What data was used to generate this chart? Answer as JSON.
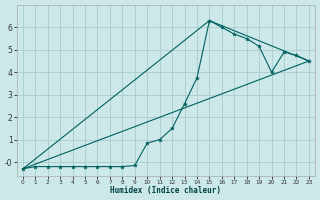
{
  "xlabel": "Humidex (Indice chaleur)",
  "bg_color": "#cce8e8",
  "grid_color": "#aacccc",
  "line_color": "#006060",
  "xlim": [
    -0.5,
    23.5
  ],
  "ylim": [
    -0.6,
    7.0
  ],
  "x_ticks": [
    0,
    1,
    2,
    3,
    4,
    5,
    6,
    7,
    8,
    9,
    10,
    11,
    12,
    13,
    14,
    15,
    16,
    17,
    18,
    19,
    20,
    21,
    22,
    23
  ],
  "y_ticks": [
    0,
    1,
    2,
    3,
    4,
    5,
    6
  ],
  "y_tick_labels": [
    "-0",
    "1",
    "2",
    "3",
    "4",
    "5",
    "6"
  ],
  "line1_x": [
    0,
    1,
    2,
    3,
    4,
    5,
    6,
    7,
    8,
    9,
    10,
    11,
    12,
    13,
    14,
    15,
    16,
    17,
    18,
    19,
    20,
    21,
    22,
    23
  ],
  "line1_y": [
    -0.3,
    -0.2,
    -0.2,
    -0.2,
    -0.2,
    -0.2,
    -0.2,
    -0.2,
    -0.2,
    -0.15,
    0.85,
    1.0,
    1.5,
    2.6,
    3.75,
    6.3,
    6.0,
    5.7,
    5.5,
    5.15,
    4.0,
    4.9,
    4.75,
    4.5
  ],
  "line2_x": [
    0,
    23
  ],
  "line2_y": [
    -0.3,
    4.5
  ],
  "line3_x": [
    0,
    15,
    23
  ],
  "line3_y": [
    -0.3,
    6.3,
    4.5
  ]
}
